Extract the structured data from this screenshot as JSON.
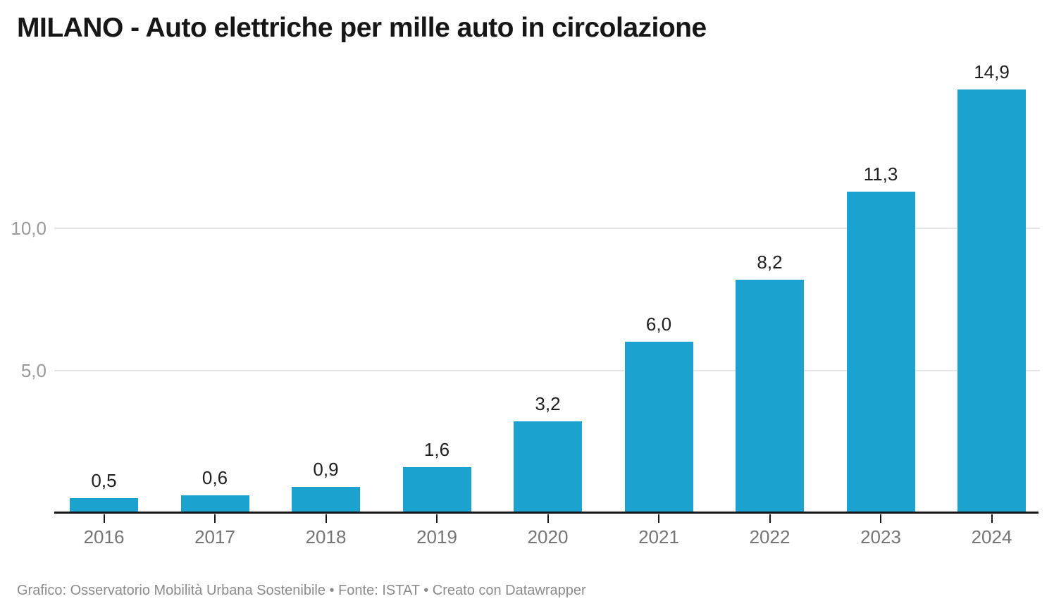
{
  "header": {
    "title": "MILANO - Auto elettriche per mille auto in circolazione"
  },
  "footer": {
    "byline": "Grafico: Osservatorio Mobilità Urbana Sostenibile • Fonte: ISTAT • Creato con Datawrapper"
  },
  "chart_data": {
    "type": "bar",
    "title": "MILANO - Auto elettriche per mille auto in circolazione",
    "categories": [
      "2016",
      "2017",
      "2018",
      "2019",
      "2020",
      "2021",
      "2022",
      "2023",
      "2024"
    ],
    "values": [
      0.5,
      0.6,
      0.9,
      1.6,
      3.2,
      6.0,
      8.2,
      11.3,
      14.9
    ],
    "value_labels": [
      "0,5",
      "0,6",
      "0,9",
      "1,6",
      "3,2",
      "6,0",
      "8,2",
      "11,3",
      "14,9"
    ],
    "xlabel": "",
    "ylabel": "",
    "ylim": [
      0,
      15
    ],
    "y_ticks": [
      {
        "value": 5,
        "label": "5,0"
      },
      {
        "value": 10,
        "label": "10,0"
      }
    ],
    "grid": "horizontal",
    "legend": "none",
    "bar_color": "#1CA2CE",
    "gridline_color": "#e4e4e4",
    "axis_color": "#161616"
  }
}
